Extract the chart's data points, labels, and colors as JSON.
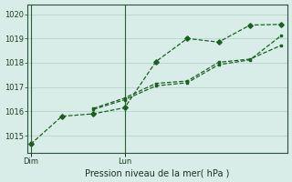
{
  "background_color": "#d8ede8",
  "grid_color": "#b8d4cc",
  "line_color": "#1a6020",
  "vline_color": "#2a6030",
  "ylim": [
    1014.3,
    1020.4
  ],
  "yticks": [
    1015,
    1016,
    1017,
    1018,
    1019,
    1020
  ],
  "xlim": [
    -0.1,
    8.2
  ],
  "series1_x": [
    0,
    1,
    2,
    3,
    4,
    5,
    6,
    7,
    8
  ],
  "series1_y": [
    1014.65,
    1015.8,
    1015.9,
    1016.15,
    1018.05,
    1019.0,
    1018.85,
    1019.55,
    1019.58
  ],
  "series2_x": [
    2,
    3,
    4,
    5,
    6,
    7,
    8
  ],
  "series2_y": [
    1016.12,
    1016.55,
    1017.15,
    1017.25,
    1018.02,
    1018.15,
    1018.72
  ],
  "series3_x": [
    2,
    3,
    4,
    5,
    6,
    7,
    8
  ],
  "series3_y": [
    1016.08,
    1016.48,
    1017.05,
    1017.18,
    1017.92,
    1018.12,
    1019.12
  ],
  "xtick_positions": [
    0,
    3
  ],
  "xtick_labels": [
    "Dim",
    "Lun"
  ],
  "vline_positions": [
    0,
    3
  ],
  "xlabel": "Pression niveau de la mer( hPa )",
  "marker_size": 2.8,
  "line_width": 0.9,
  "tick_fontsize": 6,
  "xlabel_fontsize": 7
}
